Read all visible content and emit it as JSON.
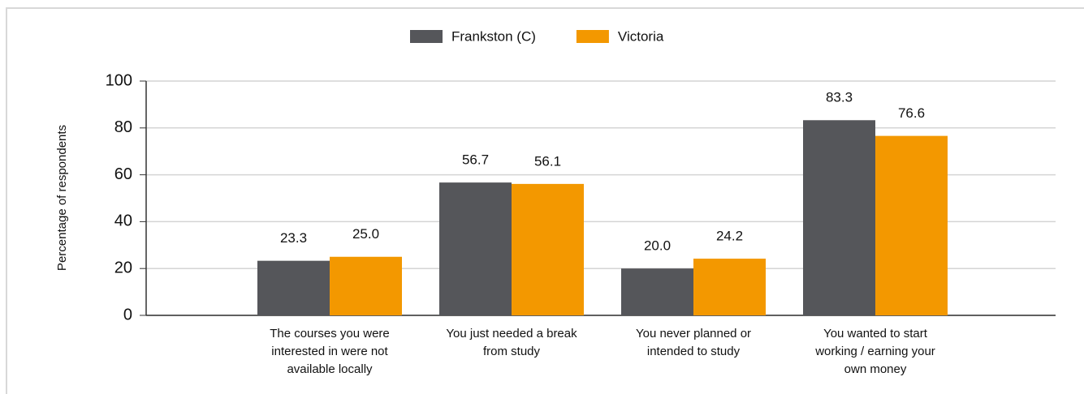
{
  "chart_data": {
    "type": "bar",
    "categories": [
      "The courses you were interested in were not available locally",
      "You just needed a break from study",
      "You never planned or intended to study",
      "You wanted to start working / earning your own money"
    ],
    "series": [
      {
        "name": "Frankston (C)",
        "color": "#55565a",
        "values": [
          23.3,
          56.7,
          20,
          83.3
        ],
        "value_labels": [
          "23.3",
          "56.7",
          "20.0",
          "83.3"
        ]
      },
      {
        "name": "Victoria",
        "color": "#f39800",
        "values": [
          25,
          56.1,
          24.2,
          76.6
        ],
        "value_labels": [
          "25.0",
          "56.1",
          "24.2",
          "76.6"
        ]
      }
    ],
    "y_label": "Percentage of respondents",
    "ylim": [
      0,
      100
    ],
    "yticks": [
      0,
      20,
      40,
      60,
      80,
      100
    ],
    "grid": true,
    "legend": "top"
  }
}
